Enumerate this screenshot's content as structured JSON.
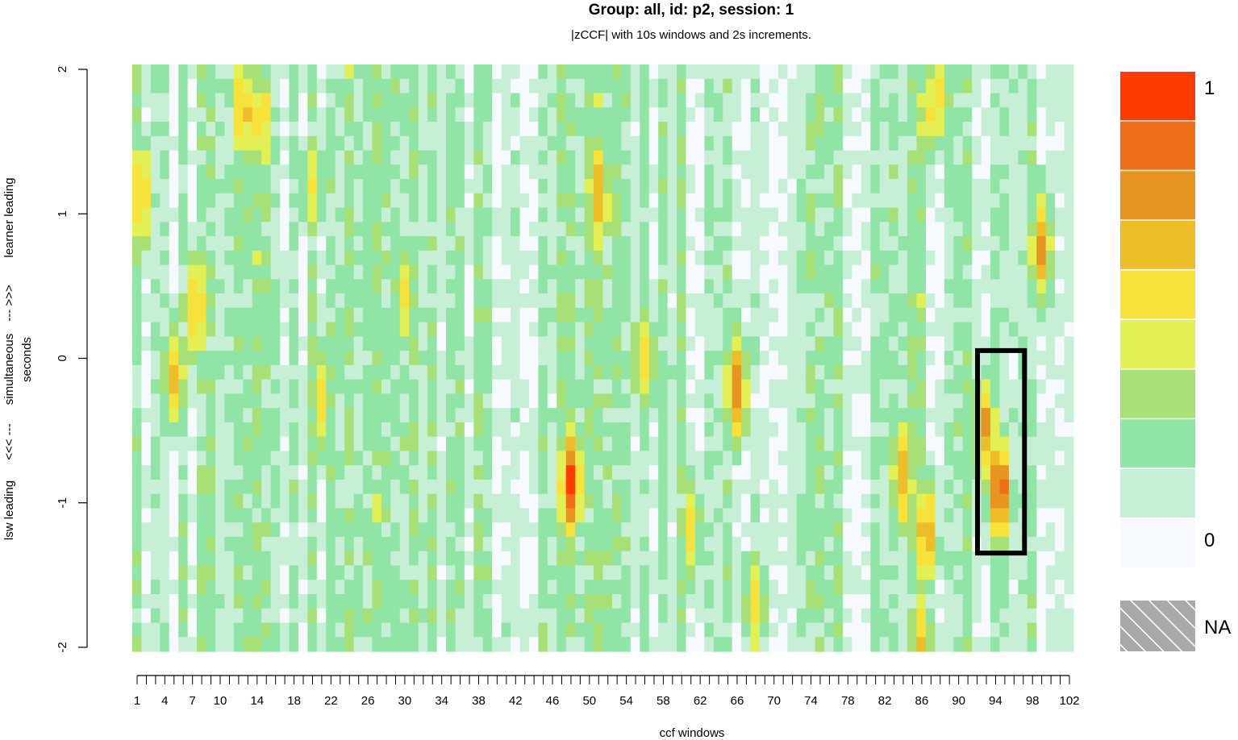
{
  "chart_data": {
    "type": "heatmap",
    "title": "Group: all, id: p2, session: 1",
    "subtitle": "|zCCF| with 10s windows and 2s increments.",
    "xlabel": "ccf windows",
    "ylabel_lines": [
      "lsw leading",
      "<<< ---",
      "simultaneous",
      "--- >>>",
      "learner leading"
    ],
    "ylabel_secondary": "seconds",
    "x_range": [
      1,
      102
    ],
    "y_range": [
      -2,
      2
    ],
    "x_tick_labels": [
      "1",
      "4",
      "7",
      "10",
      "14",
      "18",
      "22",
      "26",
      "30",
      "34",
      "38",
      "42",
      "46",
      "50",
      "54",
      "58",
      "62",
      "66",
      "70",
      "74",
      "78",
      "82",
      "86",
      "90",
      "94",
      "98",
      "102"
    ],
    "y_tick_labels": [
      "-2",
      "-1",
      "0",
      "1",
      "2"
    ],
    "value_range": [
      0,
      1
    ],
    "color_scale": [
      "#f6f9fd",
      "#c6efd6",
      "#90e4a6",
      "#a8e078",
      "#e2f055",
      "#f6e23a",
      "#eebd2a",
      "#e69522",
      "#ee6e1a",
      "#ff3c00"
    ],
    "colorbar_labels": {
      "max": "1",
      "min": "0",
      "na": "NA"
    },
    "na_color": "#aaaaaa",
    "hotspots": [
      {
        "x": 1.5,
        "y": 1.1,
        "value": 0.68
      },
      {
        "x": 12.5,
        "y": 1.7,
        "value": 0.66
      },
      {
        "x": 14.5,
        "y": 1.6,
        "value": 0.62
      },
      {
        "x": 7.5,
        "y": 0.35,
        "value": 0.62
      },
      {
        "x": 5,
        "y": -0.1,
        "value": 0.65
      },
      {
        "x": 21,
        "y": -0.3,
        "value": 0.58
      },
      {
        "x": 20,
        "y": 1.2,
        "value": 0.5
      },
      {
        "x": 30,
        "y": 0.4,
        "value": 0.55
      },
      {
        "x": 48,
        "y": -0.85,
        "value": 0.95
      },
      {
        "x": 51,
        "y": 1.1,
        "value": 0.72
      },
      {
        "x": 56,
        "y": 0.0,
        "value": 0.6
      },
      {
        "x": 61,
        "y": -1.2,
        "value": 0.55
      },
      {
        "x": 66,
        "y": -0.2,
        "value": 0.78
      },
      {
        "x": 68,
        "y": -1.7,
        "value": 0.55
      },
      {
        "x": 84,
        "y": -0.8,
        "value": 0.7
      },
      {
        "x": 86.5,
        "y": -1.2,
        "value": 0.74
      },
      {
        "x": 87,
        "y": 1.7,
        "value": 0.5
      },
      {
        "x": 88,
        "y": 1.8,
        "value": 0.55
      },
      {
        "x": 93,
        "y": -0.5,
        "value": 0.75
      },
      {
        "x": 94.5,
        "y": -0.9,
        "value": 0.92
      },
      {
        "x": 99,
        "y": 0.75,
        "value": 0.75
      },
      {
        "x": 86,
        "y": -1.9,
        "value": 0.6
      }
    ],
    "annotation_box": {
      "x_range": [
        93,
        97
      ],
      "y_range": [
        -1.33,
        0.05
      ]
    },
    "legend_position": "right",
    "grid": false
  }
}
